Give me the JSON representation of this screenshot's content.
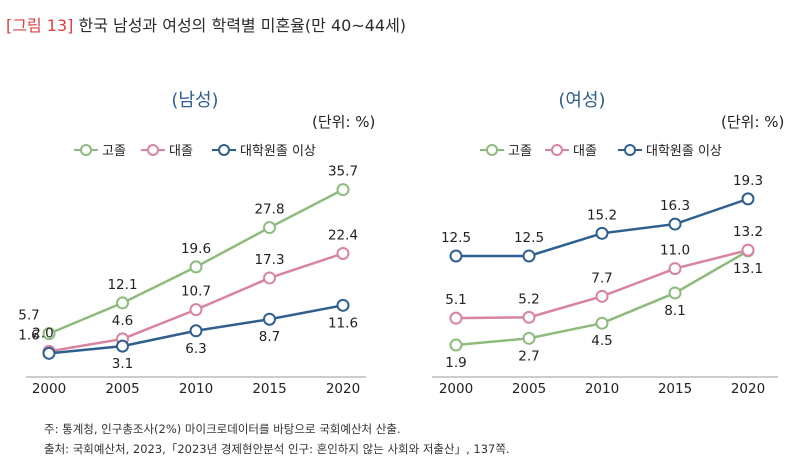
{
  "figure": {
    "label": "[그림 13]",
    "title": "한국 남성과 여성의 학력별 미혼율(만 40~44세)"
  },
  "notes": {
    "note": "주: 통계청, 인구총조사(2%) 마이크로데이터를 바탕으로 국회예산처 산출.",
    "source": "출처: 국회예산처, 2023,「2023년 경제현안분석 인구: 혼인하지 않는 사회와 저출산」, 137쪽."
  },
  "colors": {
    "high_school": "#8dbb7c",
    "college": "#d9849e",
    "graduate": "#2f5f8f",
    "subtitle": "#2f5f8f",
    "figure_label": "#d94040"
  },
  "chart_data": [
    {
      "type": "line",
      "title": "(남성)",
      "unit": "(단위: %)",
      "x": [
        "2000",
        "2005",
        "2010",
        "2015",
        "2020"
      ],
      "series": [
        {
          "name": "고졸",
          "values": [
            5.7,
            12.1,
            19.6,
            27.8,
            35.7
          ]
        },
        {
          "name": "대졸",
          "values": [
            2.0,
            4.6,
            10.7,
            17.3,
            22.4
          ]
        },
        {
          "name": "대학원졸 이상",
          "values": [
            1.6,
            3.1,
            6.3,
            8.7,
            11.6
          ]
        }
      ],
      "ylim": [
        0,
        37
      ]
    },
    {
      "type": "line",
      "title": "(여성)",
      "unit": "(단위: %)",
      "x": [
        "2000",
        "2005",
        "2010",
        "2015",
        "2020"
      ],
      "series": [
        {
          "name": "고졸",
          "values": [
            1.9,
            2.7,
            4.5,
            8.1,
            13.1
          ]
        },
        {
          "name": "대졸",
          "values": [
            5.1,
            5.2,
            7.7,
            11.0,
            13.2
          ]
        },
        {
          "name": "대학원졸 이상",
          "values": [
            12.5,
            12.5,
            15.2,
            16.3,
            19.3
          ]
        }
      ],
      "ylim": [
        0,
        20
      ]
    }
  ]
}
